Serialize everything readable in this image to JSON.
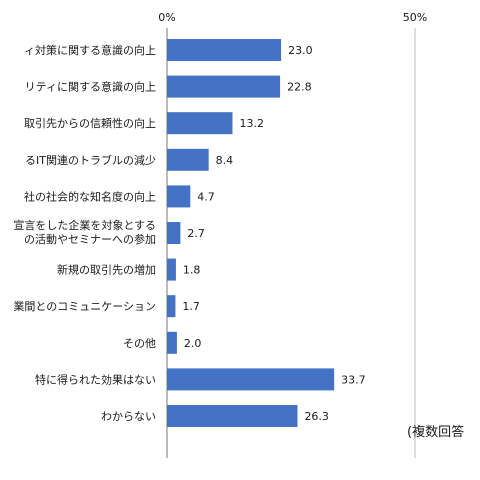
{
  "chart_data": {
    "type": "bar",
    "orientation": "horizontal",
    "categories": [
      [
        "ィ対策に関する意識の向上"
      ],
      [
        "リティに関する意識の向上"
      ],
      [
        "取引先からの信頼性の向上"
      ],
      [
        "るIT関連のトラブルの減少"
      ],
      [
        "社の社会的な知名度の向上"
      ],
      [
        "宣言をした企業を対象とする",
        "の活動やセミナーへの参加"
      ],
      [
        "新規の取引先の増加"
      ],
      [
        "業間とのコミュニケーション"
      ],
      [
        "その他"
      ],
      [
        "特に得られた効果はない"
      ],
      [
        "わからない"
      ]
    ],
    "values": [
      23.0,
      22.8,
      13.2,
      8.4,
      4.7,
      2.7,
      1.8,
      1.7,
      2.0,
      33.7,
      26.3
    ],
    "value_labels": [
      "23.0",
      "22.8",
      "13.2",
      "8.4",
      "4.7",
      "2.7",
      "1.8",
      "1.7",
      "2.0",
      "33.7",
      "26.3"
    ],
    "x_ticks": [
      {
        "value": 0,
        "label": "0%"
      },
      {
        "value": 50,
        "label": "50%"
      }
    ],
    "xlim": [
      0,
      100
    ],
    "grid": true,
    "bar_color": "#4472c4",
    "note": "(複数回答"
  }
}
